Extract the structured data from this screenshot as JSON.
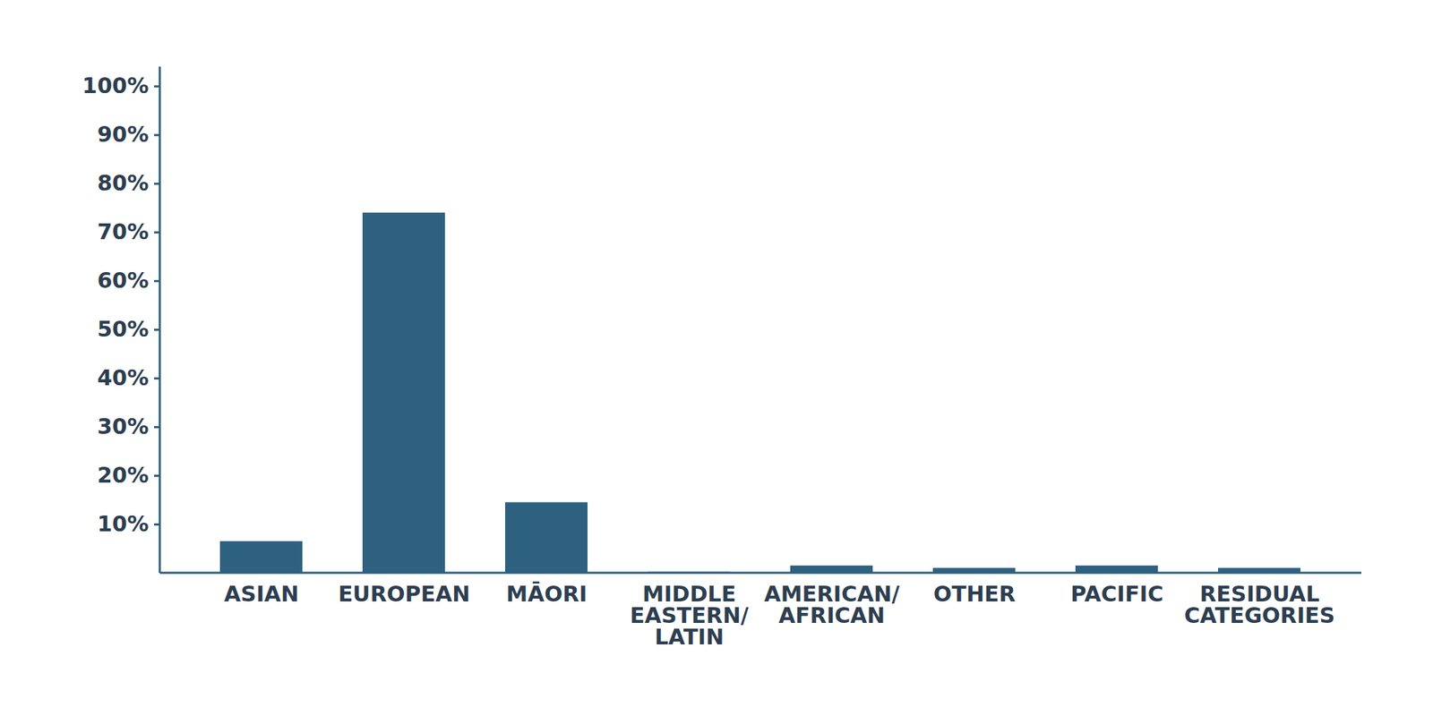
{
  "chart_data": {
    "type": "bar",
    "categories": [
      "ASIAN",
      "EUROPEAN",
      "MĀORI",
      "MIDDLE EASTERN/LATIN",
      "AMERICAN/AFRICAN",
      "OTHER",
      "PACIFIC",
      "RESIDUAL CATEGORIES"
    ],
    "values": [
      6.5,
      74,
      14.5,
      0.2,
      1.5,
      1,
      1.5,
      1
    ],
    "color": "#2e6180",
    "ylim": [
      0,
      104
    ],
    "yticks": [
      {
        "value": 10,
        "label": "10%"
      },
      {
        "value": 20,
        "label": "20%"
      },
      {
        "value": 30,
        "label": "30%"
      },
      {
        "value": 40,
        "label": "40%"
      },
      {
        "value": 50,
        "label": "50%"
      },
      {
        "value": 60,
        "label": "60%"
      },
      {
        "value": 70,
        "label": "70%"
      },
      {
        "value": 80,
        "label": "80%"
      },
      {
        "value": 90,
        "label": "90%"
      },
      {
        "value": 100,
        "label": "100%"
      }
    ],
    "grid": false
  }
}
